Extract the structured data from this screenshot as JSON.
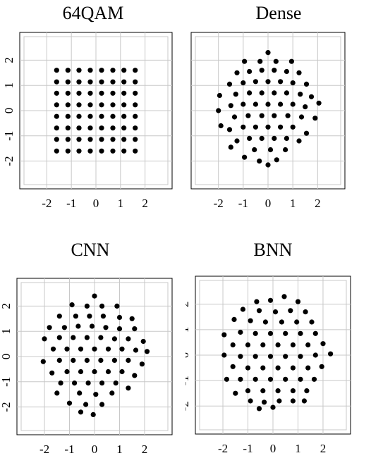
{
  "charts": {
    "qam": {
      "type": "scatter",
      "title": "64QAM",
      "xlim": [
        -3.1,
        3.1
      ],
      "ylim": [
        -3.1,
        3.1
      ],
      "xticks": [
        -2,
        -1,
        0,
        1,
        2
      ],
      "yticks": [
        2,
        1,
        0,
        -1,
        -2
      ],
      "grid": true
    },
    "dense": {
      "type": "scatter",
      "title": "Dense",
      "xlim": [
        -3.1,
        3.1
      ],
      "ylim": [
        -3.1,
        3.1
      ],
      "xticks": [
        -2,
        -1,
        0,
        1,
        2
      ],
      "yticks": [
        2,
        1,
        0,
        -1,
        -2
      ],
      "grid": true
    },
    "cnn": {
      "type": "scatter",
      "title": "CNN",
      "xlim": [
        -3.1,
        3.1
      ],
      "ylim": [
        -3.1,
        3.1
      ],
      "xticks": [
        -2,
        -1,
        0,
        1,
        2
      ],
      "yticks": [
        2,
        1,
        0,
        -1,
        -2
      ],
      "grid": true
    },
    "bnn": {
      "type": "scatter",
      "title": "BNN",
      "xlim": [
        -3.1,
        3.1
      ],
      "ylim": [
        -3.1,
        3.1
      ],
      "xticks": [
        -2,
        -1,
        0,
        1,
        2
      ],
      "yticks": [
        2,
        1,
        0,
        -1,
        -2
      ],
      "grid": true
    }
  },
  "chart_data": [
    {
      "type": "scatter",
      "title": "64QAM",
      "points": [
        [
          -1.6,
          1.6
        ],
        [
          -1.6,
          1.14
        ],
        [
          -1.6,
          0.69
        ],
        [
          -1.6,
          0.23
        ],
        [
          -1.6,
          -0.23
        ],
        [
          -1.6,
          -0.69
        ],
        [
          -1.6,
          -1.14
        ],
        [
          -1.6,
          -1.6
        ],
        [
          -1.14,
          1.6
        ],
        [
          -1.14,
          1.14
        ],
        [
          -1.14,
          0.69
        ],
        [
          -1.14,
          0.23
        ],
        [
          -1.14,
          -0.23
        ],
        [
          -1.14,
          -0.69
        ],
        [
          -1.14,
          -1.14
        ],
        [
          -1.14,
          -1.6
        ],
        [
          -0.69,
          1.6
        ],
        [
          -0.69,
          1.14
        ],
        [
          -0.69,
          0.69
        ],
        [
          -0.69,
          0.23
        ],
        [
          -0.69,
          -0.23
        ],
        [
          -0.69,
          -0.69
        ],
        [
          -0.69,
          -1.14
        ],
        [
          -0.69,
          -1.6
        ],
        [
          -0.23,
          1.6
        ],
        [
          -0.23,
          1.14
        ],
        [
          -0.23,
          0.69
        ],
        [
          -0.23,
          0.23
        ],
        [
          -0.23,
          -0.23
        ],
        [
          -0.23,
          -0.69
        ],
        [
          -0.23,
          -1.14
        ],
        [
          -0.23,
          -1.6
        ],
        [
          0.23,
          1.6
        ],
        [
          0.23,
          1.14
        ],
        [
          0.23,
          0.69
        ],
        [
          0.23,
          0.23
        ],
        [
          0.23,
          -0.23
        ],
        [
          0.23,
          -0.69
        ],
        [
          0.23,
          -1.14
        ],
        [
          0.23,
          -1.6
        ],
        [
          0.69,
          1.6
        ],
        [
          0.69,
          1.14
        ],
        [
          0.69,
          0.69
        ],
        [
          0.69,
          0.23
        ],
        [
          0.69,
          -0.23
        ],
        [
          0.69,
          -0.69
        ],
        [
          0.69,
          -1.14
        ],
        [
          0.69,
          -1.6
        ],
        [
          1.14,
          1.6
        ],
        [
          1.14,
          1.14
        ],
        [
          1.14,
          0.69
        ],
        [
          1.14,
          0.23
        ],
        [
          1.14,
          -0.23
        ],
        [
          1.14,
          -0.69
        ],
        [
          1.14,
          -1.14
        ],
        [
          1.14,
          -1.6
        ],
        [
          1.6,
          1.6
        ],
        [
          1.6,
          1.14
        ],
        [
          1.6,
          0.69
        ],
        [
          1.6,
          0.23
        ],
        [
          1.6,
          -0.23
        ],
        [
          1.6,
          -0.69
        ],
        [
          1.6,
          -1.14
        ],
        [
          1.6,
          -1.6
        ]
      ],
      "xlim": [
        -3.1,
        3.1
      ],
      "ylim": [
        -3.1,
        3.1
      ]
    },
    {
      "type": "scatter",
      "title": "Dense",
      "points": [
        [
          0,
          2.3
        ],
        [
          -0.95,
          1.95
        ],
        [
          -0.32,
          1.95
        ],
        [
          0.32,
          1.95
        ],
        [
          0.95,
          1.95
        ],
        [
          -1.25,
          1.5
        ],
        [
          -0.75,
          1.55
        ],
        [
          -0.25,
          1.6
        ],
        [
          0.25,
          1.6
        ],
        [
          0.75,
          1.55
        ],
        [
          1.25,
          1.5
        ],
        [
          -1.55,
          1.05
        ],
        [
          -1.0,
          1.1
        ],
        [
          -0.5,
          1.15
        ],
        [
          0,
          1.15
        ],
        [
          0.5,
          1.15
        ],
        [
          1.0,
          1.1
        ],
        [
          1.55,
          1.05
        ],
        [
          -1.95,
          0.6
        ],
        [
          -1.3,
          0.65
        ],
        [
          -0.75,
          0.7
        ],
        [
          -0.25,
          0.7
        ],
        [
          0.25,
          0.7
        ],
        [
          0.75,
          0.7
        ],
        [
          1.3,
          0.65
        ],
        [
          1.75,
          0.55
        ],
        [
          -2.0,
          0.0
        ],
        [
          -1.5,
          0.2
        ],
        [
          -1.0,
          0.25
        ],
        [
          -0.5,
          0.25
        ],
        [
          0,
          0.25
        ],
        [
          0.5,
          0.25
        ],
        [
          1.0,
          0.25
        ],
        [
          1.5,
          0.15
        ],
        [
          2.05,
          0.3
        ],
        [
          -1.9,
          -0.6
        ],
        [
          -1.35,
          -0.25
        ],
        [
          -0.8,
          -0.2
        ],
        [
          -0.25,
          -0.2
        ],
        [
          0.25,
          -0.2
        ],
        [
          0.8,
          -0.2
        ],
        [
          1.35,
          -0.25
        ],
        [
          1.9,
          -0.3
        ],
        [
          -1.55,
          -0.75
        ],
        [
          -1.0,
          -0.65
        ],
        [
          -0.5,
          -0.65
        ],
        [
          0,
          -0.65
        ],
        [
          0.5,
          -0.65
        ],
        [
          1.0,
          -0.65
        ],
        [
          1.55,
          -0.9
        ],
        [
          -1.25,
          -1.2
        ],
        [
          -0.75,
          -1.1
        ],
        [
          -0.25,
          -1.1
        ],
        [
          0.25,
          -1.1
        ],
        [
          0.75,
          -1.1
        ],
        [
          1.25,
          -1.2
        ],
        [
          -1.5,
          -1.45
        ],
        [
          -0.55,
          -1.55
        ],
        [
          0.1,
          -1.55
        ],
        [
          0.7,
          -1.55
        ],
        [
          -0.95,
          -1.85
        ],
        [
          -0.35,
          -2.0
        ],
        [
          0.35,
          -1.95
        ],
        [
          0,
          -2.15
        ]
      ],
      "xlim": [
        -3.1,
        3.1
      ],
      "ylim": [
        -3.1,
        3.1
      ]
    },
    {
      "type": "scatter",
      "title": "CNN",
      "points": [
        [
          0,
          2.4
        ],
        [
          -0.9,
          2.05
        ],
        [
          -0.3,
          2.0
        ],
        [
          0.3,
          2.0
        ],
        [
          0.9,
          2.0
        ],
        [
          -1.4,
          1.6
        ],
        [
          -0.75,
          1.6
        ],
        [
          -0.2,
          1.6
        ],
        [
          0.35,
          1.6
        ],
        [
          1.0,
          1.55
        ],
        [
          1.5,
          1.5
        ],
        [
          -1.8,
          1.15
        ],
        [
          -1.2,
          1.15
        ],
        [
          -0.65,
          1.2
        ],
        [
          -0.1,
          1.2
        ],
        [
          0.45,
          1.15
        ],
        [
          1.0,
          1.1
        ],
        [
          1.6,
          1.1
        ],
        [
          -2.0,
          0.7
        ],
        [
          -1.4,
          0.75
        ],
        [
          -0.85,
          0.75
        ],
        [
          -0.3,
          0.75
        ],
        [
          0.25,
          0.75
        ],
        [
          0.8,
          0.7
        ],
        [
          1.35,
          0.7
        ],
        [
          1.95,
          0.6
        ],
        [
          -1.65,
          0.3
        ],
        [
          -1.1,
          0.3
        ],
        [
          -0.55,
          0.3
        ],
        [
          0,
          0.3
        ],
        [
          0.55,
          0.3
        ],
        [
          1.1,
          0.3
        ],
        [
          1.65,
          0.25
        ],
        [
          2.1,
          0.2
        ],
        [
          -2.05,
          -0.2
        ],
        [
          -1.4,
          -0.15
        ],
        [
          -0.85,
          -0.15
        ],
        [
          -0.3,
          -0.15
        ],
        [
          0.25,
          -0.15
        ],
        [
          0.8,
          -0.15
        ],
        [
          1.35,
          -0.15
        ],
        [
          1.9,
          -0.3
        ],
        [
          -1.7,
          -0.65
        ],
        [
          -1.1,
          -0.6
        ],
        [
          -0.55,
          -0.6
        ],
        [
          0,
          -0.6
        ],
        [
          0.55,
          -0.6
        ],
        [
          1.1,
          -0.6
        ],
        [
          1.6,
          -0.75
        ],
        [
          -1.35,
          -1.05
        ],
        [
          -0.8,
          -1.05
        ],
        [
          -0.25,
          -1.05
        ],
        [
          0.3,
          -1.05
        ],
        [
          0.85,
          -1.05
        ],
        [
          1.35,
          -1.25
        ],
        [
          -1.5,
          -1.45
        ],
        [
          -0.6,
          -1.45
        ],
        [
          0.05,
          -1.5
        ],
        [
          0.7,
          -1.45
        ],
        [
          -1.0,
          -1.85
        ],
        [
          -0.35,
          -1.9
        ],
        [
          0.3,
          -1.9
        ],
        [
          -0.55,
          -2.2
        ],
        [
          -0.05,
          -2.3
        ]
      ],
      "xlim": [
        -3.1,
        3.1
      ],
      "ylim": [
        -3.1,
        3.1
      ]
    },
    {
      "type": "scatter",
      "title": "BNN",
      "points": [
        [
          0.45,
          2.3
        ],
        [
          -0.65,
          2.1
        ],
        [
          -0.1,
          2.15
        ],
        [
          1.0,
          2.1
        ],
        [
          -1.2,
          1.8
        ],
        [
          -0.55,
          1.75
        ],
        [
          0.1,
          1.7
        ],
        [
          0.7,
          1.75
        ],
        [
          1.3,
          1.7
        ],
        [
          -1.55,
          1.4
        ],
        [
          -0.9,
          1.35
        ],
        [
          -0.3,
          1.3
        ],
        [
          0.35,
          1.3
        ],
        [
          0.95,
          1.3
        ],
        [
          1.55,
          1.3
        ],
        [
          -1.95,
          0.8
        ],
        [
          -1.3,
          0.9
        ],
        [
          -0.7,
          0.85
        ],
        [
          -0.1,
          0.85
        ],
        [
          0.5,
          0.85
        ],
        [
          1.1,
          0.85
        ],
        [
          1.7,
          0.85
        ],
        [
          -1.6,
          0.4
        ],
        [
          -1.0,
          0.4
        ],
        [
          -0.4,
          0.4
        ],
        [
          0.2,
          0.4
        ],
        [
          0.8,
          0.4
        ],
        [
          1.4,
          0.4
        ],
        [
          2.0,
          0.45
        ],
        [
          -1.95,
          0.0
        ],
        [
          -1.3,
          -0.05
        ],
        [
          -0.7,
          -0.05
        ],
        [
          -0.1,
          -0.05
        ],
        [
          0.5,
          -0.05
        ],
        [
          1.1,
          -0.05
        ],
        [
          1.7,
          0.0
        ],
        [
          2.3,
          0.05
        ],
        [
          -1.6,
          -0.45
        ],
        [
          -1.0,
          -0.5
        ],
        [
          -0.4,
          -0.5
        ],
        [
          0.2,
          -0.5
        ],
        [
          0.8,
          -0.5
        ],
        [
          1.4,
          -0.5
        ],
        [
          1.95,
          -0.45
        ],
        [
          -1.85,
          -0.95
        ],
        [
          -1.3,
          -0.95
        ],
        [
          -0.7,
          -0.95
        ],
        [
          -0.1,
          -0.95
        ],
        [
          0.5,
          -0.95
        ],
        [
          1.1,
          -0.95
        ],
        [
          1.65,
          -0.95
        ],
        [
          -1.0,
          -1.4
        ],
        [
          -0.4,
          -1.4
        ],
        [
          0.2,
          -1.4
        ],
        [
          0.8,
          -1.4
        ],
        [
          1.35,
          -1.4
        ],
        [
          -1.5,
          -1.5
        ],
        [
          -0.9,
          -1.8
        ],
        [
          -0.35,
          -1.85
        ],
        [
          0.25,
          -1.8
        ],
        [
          0.8,
          -1.8
        ],
        [
          1.25,
          -1.8
        ],
        [
          -0.55,
          -2.1
        ],
        [
          0.0,
          -2.05
        ]
      ],
      "xlim": [
        -3.1,
        3.1
      ],
      "ylim": [
        -3.1,
        3.1
      ]
    }
  ]
}
